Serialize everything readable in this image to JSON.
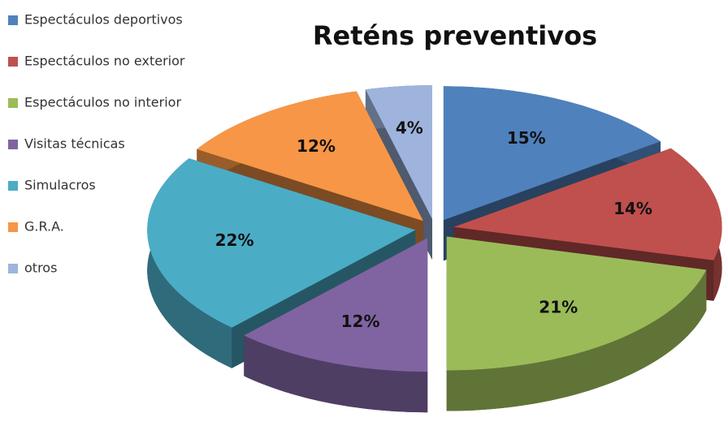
{
  "chart_data": {
    "type": "pie",
    "title": "Reténs preventivos",
    "categories": [
      "Espectáculos deportivos",
      "Espectáculos no exterior",
      "Espectáculos no interior",
      "Visitas técnicas",
      "Simulacros",
      "G.R.A.",
      "otros"
    ],
    "values": [
      15,
      14,
      21,
      12,
      22,
      12,
      4
    ],
    "value_labels": [
      "15%",
      "14%",
      "21%",
      "12%",
      "22%",
      "12%",
      "4%"
    ],
    "colors": [
      "#4f81bd",
      "#c0504d",
      "#9bbb59",
      "#8064a2",
      "#4bacc6",
      "#f79646",
      "#9eb4dc"
    ],
    "legend": "left"
  }
}
